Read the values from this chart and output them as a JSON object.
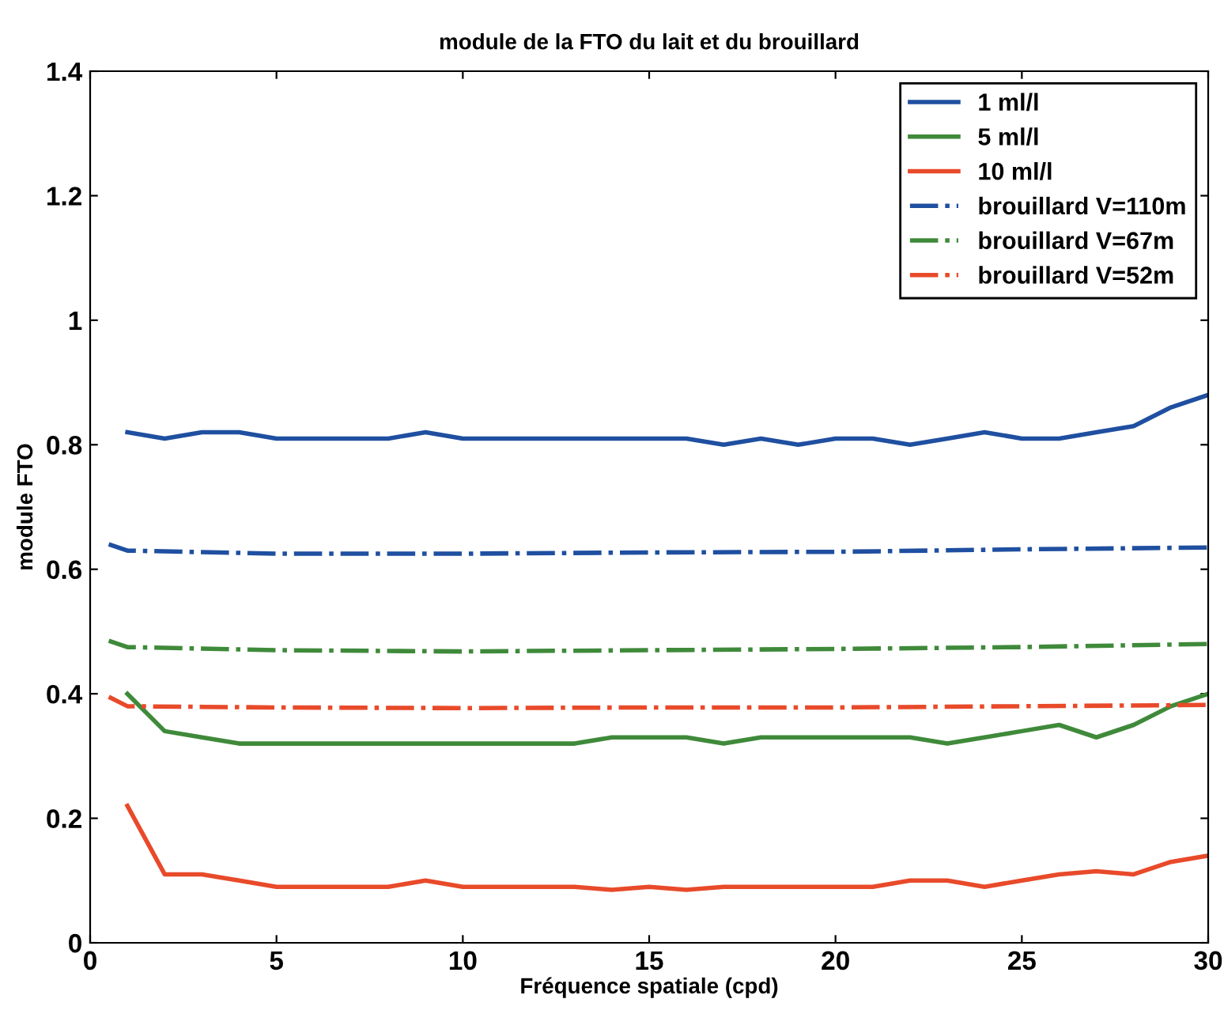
{
  "chart_data": {
    "type": "line",
    "title": "module de la FTO du lait et du brouillard",
    "xlabel": "Fréquence spatiale (cpd)",
    "ylabel": "module FTO",
    "xlim": [
      0,
      30
    ],
    "xticks": [
      0,
      5,
      10,
      15,
      20,
      25,
      30
    ],
    "ylim": [
      0,
      1.4
    ],
    "yticks": [
      0,
      0.2,
      0.4,
      0.6,
      0.8,
      1,
      1.2,
      1.4
    ],
    "grid": false,
    "legend": "top right",
    "marker": "none",
    "series": [
      {
        "name": "1 ml/l",
        "color": "#1f4fa0",
        "line_style": "solid",
        "x": [
          1,
          2,
          3,
          4,
          5,
          6,
          7,
          8,
          9,
          10,
          11,
          12,
          13,
          14,
          15,
          16,
          17,
          18,
          19,
          20,
          21,
          22,
          23,
          24,
          25,
          26,
          27,
          28,
          29,
          30
        ],
        "values": [
          0.82,
          0.81,
          0.82,
          0.82,
          0.81,
          0.81,
          0.81,
          0.81,
          0.82,
          0.81,
          0.81,
          0.81,
          0.81,
          0.81,
          0.81,
          0.81,
          0.8,
          0.81,
          0.8,
          0.81,
          0.81,
          0.8,
          0.81,
          0.82,
          0.81,
          0.81,
          0.82,
          0.83,
          0.86,
          0.88
        ]
      },
      {
        "name": "5 ml/l",
        "color": "#3f8a3a",
        "line_style": "solid",
        "x": [
          1,
          2,
          3,
          4,
          5,
          6,
          7,
          8,
          9,
          10,
          11,
          12,
          13,
          14,
          15,
          16,
          17,
          18,
          19,
          20,
          21,
          22,
          23,
          24,
          25,
          26,
          27,
          28,
          29,
          30
        ],
        "values": [
          0.4,
          0.34,
          0.33,
          0.32,
          0.32,
          0.32,
          0.32,
          0.32,
          0.32,
          0.32,
          0.32,
          0.32,
          0.32,
          0.33,
          0.33,
          0.33,
          0.32,
          0.33,
          0.33,
          0.33,
          0.33,
          0.33,
          0.32,
          0.33,
          0.34,
          0.35,
          0.33,
          0.35,
          0.38,
          0.4
        ]
      },
      {
        "name": "10 ml/l",
        "color": "#e84a2a",
        "line_style": "solid",
        "x": [
          1,
          2,
          3,
          4,
          5,
          6,
          7,
          8,
          9,
          10,
          11,
          12,
          13,
          14,
          15,
          16,
          17,
          18,
          19,
          20,
          21,
          22,
          23,
          24,
          25,
          26,
          27,
          28,
          29,
          30
        ],
        "values": [
          0.22,
          0.11,
          0.11,
          0.1,
          0.09,
          0.09,
          0.09,
          0.09,
          0.1,
          0.09,
          0.09,
          0.09,
          0.09,
          0.085,
          0.09,
          0.085,
          0.09,
          0.09,
          0.09,
          0.09,
          0.09,
          0.1,
          0.1,
          0.09,
          0.1,
          0.11,
          0.115,
          0.11,
          0.13,
          0.14
        ]
      },
      {
        "name": "brouillard V=110m",
        "color": "#1f4fa0",
        "line_style": "dashdot",
        "x": [
          0.5,
          1,
          5,
          10,
          15,
          20,
          25,
          30
        ],
        "values": [
          0.64,
          0.63,
          0.625,
          0.625,
          0.627,
          0.628,
          0.632,
          0.635
        ]
      },
      {
        "name": "brouillard V=67m",
        "color": "#3f8a3a",
        "line_style": "dashdot",
        "x": [
          0.5,
          1,
          5,
          10,
          15,
          20,
          25,
          30
        ],
        "values": [
          0.485,
          0.475,
          0.47,
          0.468,
          0.47,
          0.472,
          0.475,
          0.48
        ]
      },
      {
        "name": "brouillard V=52m",
        "color": "#e84a2a",
        "line_style": "dashdot",
        "x": [
          0.5,
          1,
          5,
          10,
          15,
          20,
          25,
          30
        ],
        "values": [
          0.395,
          0.38,
          0.378,
          0.377,
          0.378,
          0.378,
          0.38,
          0.382
        ]
      }
    ]
  }
}
